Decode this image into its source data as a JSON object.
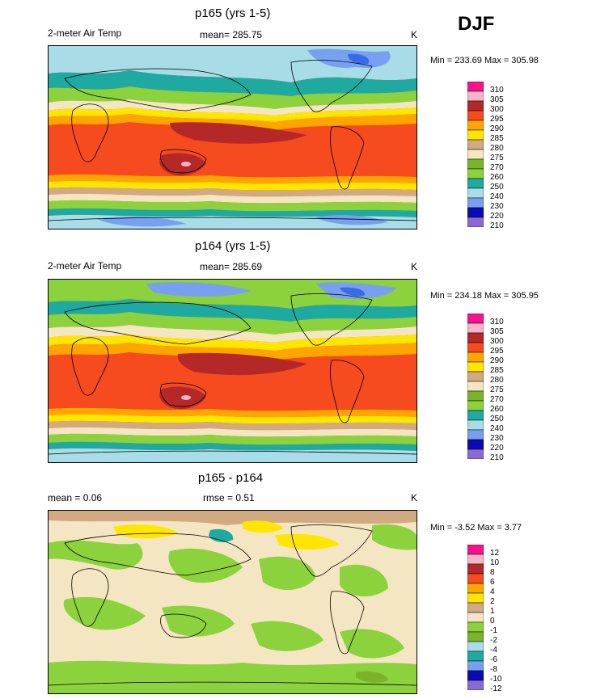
{
  "season": "DJF",
  "panels": [
    {
      "title": "p165 (yrs 1-5)",
      "left_label": "2-meter Air Temp",
      "center_label": "mean= 285.75",
      "units": "K",
      "minmax": "Min = 233.69 Max = 305.98",
      "levels": [
        "310",
        "305",
        "300",
        "295",
        "290",
        "285",
        "280",
        "275",
        "270",
        "260",
        "250",
        "240",
        "230",
        "220",
        "210"
      ]
    },
    {
      "title": "p164 (yrs 1-5)",
      "left_label": "2-meter Air Temp",
      "center_label": "mean= 285.69",
      "units": "K",
      "minmax": "Min = 234.18 Max = 305.95",
      "levels": [
        "310",
        "305",
        "300",
        "295",
        "290",
        "285",
        "280",
        "275",
        "270",
        "260",
        "250",
        "240",
        "230",
        "220",
        "210"
      ]
    },
    {
      "title": "p165 - p164",
      "left_label": "mean =   0.06",
      "center_label": "rmse =   0.51",
      "units": "K",
      "minmax": "Min =  -3.52 Max =   3.77",
      "levels": [
        "12",
        "10",
        "8",
        "6",
        "4",
        "2",
        "1",
        "0",
        "-1",
        "-2",
        "-4",
        "-6",
        "-8",
        "-10",
        "-12"
      ]
    }
  ],
  "chart_data": [
    {
      "type": "heatmap",
      "title": "p165 (yrs 1-5)",
      "variable": "2-meter Air Temp",
      "units": "K",
      "mean": 285.75,
      "min": 233.69,
      "max": 305.98,
      "contour_levels": [
        210,
        220,
        230,
        240,
        250,
        260,
        270,
        275,
        280,
        285,
        290,
        295,
        300,
        305,
        310
      ],
      "colors": [
        "#8a6ad2",
        "#0a0ab4",
        "#3c6ae6",
        "#78a0f0",
        "#a8dce6",
        "#1eaaa0",
        "#8cd23c",
        "#7ab42a",
        "#f5e6c3",
        "#d2aa82",
        "#ffe600",
        "#ffa500",
        "#f54b1e",
        "#b42828",
        "#f5b4c8",
        "#f5148c"
      ]
    },
    {
      "type": "heatmap",
      "title": "p164 (yrs 1-5)",
      "variable": "2-meter Air Temp",
      "units": "K",
      "mean": 285.69,
      "min": 234.18,
      "max": 305.95,
      "contour_levels": [
        210,
        220,
        230,
        240,
        250,
        260,
        270,
        275,
        280,
        285,
        290,
        295,
        300,
        305,
        310
      ],
      "colors": [
        "#8a6ad2",
        "#0a0ab4",
        "#3c6ae6",
        "#78a0f0",
        "#a8dce6",
        "#1eaaa0",
        "#8cd23c",
        "#7ab42a",
        "#f5e6c3",
        "#d2aa82",
        "#ffe600",
        "#ffa500",
        "#f54b1e",
        "#b42828",
        "#f5b4c8",
        "#f5148c"
      ]
    },
    {
      "type": "heatmap",
      "title": "p165 - p164",
      "units": "K",
      "mean": 0.06,
      "rmse": 0.51,
      "min": -3.52,
      "max": 3.77,
      "contour_levels": [
        -12,
        -10,
        -8,
        -6,
        -4,
        -2,
        -1,
        0,
        1,
        2,
        4,
        6,
        8,
        10,
        12
      ],
      "colors": [
        "#8a6ad2",
        "#0a0ab4",
        "#3c6ae6",
        "#78a0f0",
        "#1eaaa0",
        "#a8dce6",
        "#7ab42a",
        "#8cd23c",
        "#f5e6c3",
        "#d2aa82",
        "#ffe600",
        "#ffa500",
        "#f54b1e",
        "#b42828",
        "#f5b4c8",
        "#f5148c"
      ]
    }
  ]
}
